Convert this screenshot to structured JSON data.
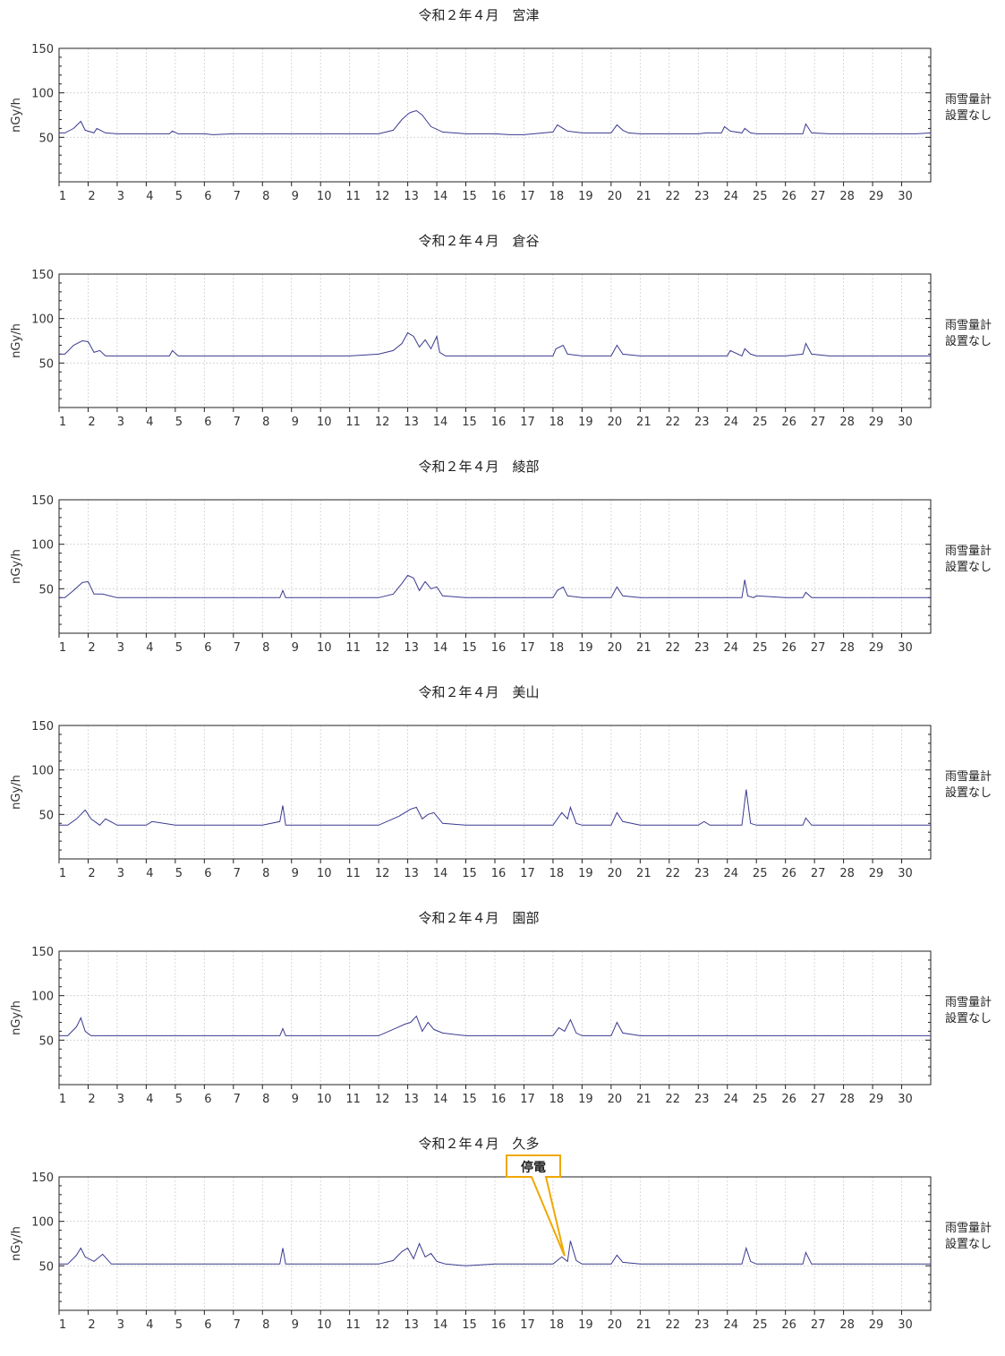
{
  "rain_note": [
    "雨雪量計",
    "設置なし"
  ],
  "callout": {
    "label": "停電",
    "x": 18.4,
    "y": 61
  },
  "chart_data": [
    {
      "type": "line",
      "title": "令和２年４月　宮津",
      "ylabel": "nGy/h",
      "ylim": [
        0,
        150
      ],
      "yticks": [
        50,
        100,
        150
      ],
      "xlim": [
        1,
        31
      ],
      "xticks": [
        "1",
        "2",
        "3",
        "4",
        "5",
        "6",
        "7",
        "8",
        "9",
        "10",
        "11",
        "12",
        "13",
        "14",
        "15",
        "16",
        "17",
        "18",
        "19",
        "20",
        "21",
        "22",
        "23",
        "24",
        "25",
        "26",
        "27",
        "28",
        "29",
        "30"
      ],
      "grid": true,
      "series": [
        {
          "x": [
            1,
            1.2,
            1.5,
            1.75,
            1.9,
            2.2,
            2.3,
            2.6,
            3,
            4,
            4.8,
            4.9,
            5.1,
            6,
            6.3,
            7,
            7.5,
            8,
            9,
            10,
            11,
            12,
            12.5,
            12.8,
            13,
            13.1,
            13.3,
            13.5,
            13.8,
            14.2,
            15,
            16,
            16.5,
            17,
            18,
            18.15,
            18.35,
            18.5,
            19,
            20,
            20.2,
            20.4,
            20.6,
            21,
            22,
            23,
            23.3,
            23.8,
            23.9,
            24.1,
            24.5,
            24.6,
            24.8,
            25,
            26,
            26.6,
            26.7,
            26.9,
            27.5,
            28,
            29,
            30,
            30.5,
            31
          ],
          "y": [
            55,
            55,
            60,
            68,
            58,
            55,
            60,
            55,
            54,
            54,
            54,
            57,
            54,
            54,
            53,
            54,
            54,
            54,
            54,
            54,
            54,
            54,
            58,
            70,
            76,
            78,
            80,
            75,
            62,
            56,
            54,
            54,
            53,
            53,
            56,
            64,
            60,
            57,
            55,
            55,
            64,
            58,
            55,
            54,
            54,
            54,
            55,
            55,
            62,
            57,
            55,
            60,
            55,
            54,
            54,
            54,
            65,
            55,
            54,
            54,
            54,
            54,
            54,
            55
          ]
        }
      ]
    },
    {
      "type": "line",
      "title": "令和２年４月　倉谷",
      "ylabel": "nGy/h",
      "ylim": [
        0,
        150
      ],
      "yticks": [
        50,
        100,
        150
      ],
      "xlim": [
        1,
        31
      ],
      "xticks": [
        "1",
        "2",
        "3",
        "4",
        "5",
        "6",
        "7",
        "8",
        "9",
        "10",
        "11",
        "12",
        "13",
        "14",
        "15",
        "16",
        "17",
        "18",
        "19",
        "20",
        "21",
        "22",
        "23",
        "24",
        "25",
        "26",
        "27",
        "28",
        "29",
        "30"
      ],
      "grid": true,
      "series": [
        {
          "x": [
            1,
            1.2,
            1.5,
            1.8,
            2,
            2.2,
            2.4,
            2.6,
            3,
            4,
            4.8,
            4.9,
            5.1,
            6,
            7,
            8,
            9,
            10,
            11,
            12,
            12.5,
            12.8,
            13,
            13.2,
            13.4,
            13.6,
            13.8,
            14,
            14.1,
            14.3,
            15,
            16,
            17,
            18,
            18.1,
            18.35,
            18.5,
            19,
            20,
            20.2,
            20.4,
            21,
            22,
            23,
            24,
            24.1,
            24.5,
            24.6,
            24.8,
            25,
            26,
            26.6,
            26.7,
            26.9,
            27.5,
            28,
            29,
            30,
            31
          ],
          "y": [
            60,
            60,
            70,
            75,
            74,
            62,
            64,
            58,
            58,
            58,
            58,
            64,
            58,
            58,
            58,
            58,
            58,
            58,
            58,
            60,
            64,
            72,
            84,
            80,
            68,
            76,
            66,
            80,
            62,
            58,
            58,
            58,
            58,
            58,
            66,
            70,
            60,
            58,
            58,
            70,
            60,
            58,
            58,
            58,
            58,
            64,
            58,
            66,
            60,
            58,
            58,
            60,
            72,
            60,
            58,
            58,
            58,
            58,
            58
          ]
        }
      ]
    },
    {
      "type": "line",
      "title": "令和２年４月　綾部",
      "ylabel": "nGy/h",
      "ylim": [
        0,
        150
      ],
      "yticks": [
        50,
        100,
        150
      ],
      "xlim": [
        1,
        31
      ],
      "xticks": [
        "1",
        "2",
        "3",
        "4",
        "5",
        "6",
        "7",
        "8",
        "9",
        "10",
        "11",
        "12",
        "13",
        "14",
        "15",
        "16",
        "17",
        "18",
        "19",
        "20",
        "21",
        "22",
        "23",
        "24",
        "25",
        "26",
        "27",
        "28",
        "29",
        "30"
      ],
      "grid": true,
      "series": [
        {
          "x": [
            1,
            1.2,
            1.5,
            1.8,
            2,
            2.2,
            2.5,
            3,
            4,
            5,
            6,
            7,
            8,
            8.6,
            8.7,
            8.8,
            9,
            10,
            11,
            12,
            12.5,
            12.8,
            13,
            13.2,
            13.4,
            13.6,
            13.8,
            14,
            14.2,
            15,
            16,
            17,
            18,
            18.15,
            18.35,
            18.5,
            19,
            20,
            20.2,
            20.4,
            21,
            22,
            23,
            24,
            24.5,
            24.6,
            24.7,
            24.9,
            25,
            26,
            26.6,
            26.7,
            26.9,
            27,
            28,
            29,
            30,
            31
          ],
          "y": [
            40,
            40,
            48,
            57,
            58,
            44,
            44,
            40,
            40,
            40,
            40,
            40,
            40,
            40,
            48,
            40,
            40,
            40,
            40,
            40,
            44,
            56,
            65,
            62,
            48,
            58,
            50,
            52,
            42,
            40,
            40,
            40,
            40,
            48,
            52,
            42,
            40,
            40,
            52,
            42,
            40,
            40,
            40,
            40,
            40,
            60,
            42,
            40,
            42,
            40,
            40,
            46,
            40,
            40,
            40,
            40,
            40,
            40
          ]
        }
      ]
    },
    {
      "type": "line",
      "title": "令和２年４月　美山",
      "ylabel": "nGy/h",
      "ylim": [
        0,
        150
      ],
      "yticks": [
        50,
        100,
        150
      ],
      "xlim": [
        1,
        31
      ],
      "xticks": [
        "1",
        "2",
        "3",
        "4",
        "5",
        "6",
        "7",
        "8",
        "9",
        "10",
        "11",
        "12",
        "13",
        "14",
        "15",
        "16",
        "17",
        "18",
        "19",
        "20",
        "21",
        "22",
        "23",
        "24",
        "25",
        "26",
        "27",
        "28",
        "29",
        "30"
      ],
      "grid": true,
      "series": [
        {
          "x": [
            1,
            1.3,
            1.6,
            1.9,
            2.1,
            2.4,
            2.6,
            3,
            4,
            4.2,
            5,
            6,
            7,
            8,
            8.6,
            8.7,
            8.8,
            9,
            10,
            11,
            12,
            12.7,
            12.9,
            13.1,
            13.3,
            13.5,
            13.7,
            13.9,
            14.2,
            15,
            16,
            17,
            18,
            18.3,
            18.5,
            18.6,
            18.8,
            19,
            20,
            20.2,
            20.4,
            21,
            22,
            23,
            23.2,
            23.4,
            24,
            24.5,
            24.65,
            24.8,
            25,
            26,
            26.6,
            26.7,
            26.9,
            27,
            28,
            29,
            30,
            31
          ],
          "y": [
            38,
            38,
            45,
            55,
            45,
            38,
            45,
            38,
            38,
            42,
            38,
            38,
            38,
            38,
            42,
            60,
            38,
            38,
            38,
            38,
            38,
            48,
            52,
            56,
            58,
            45,
            50,
            52,
            40,
            38,
            38,
            38,
            38,
            52,
            45,
            58,
            40,
            38,
            38,
            52,
            42,
            38,
            38,
            38,
            42,
            38,
            38,
            38,
            78,
            40,
            38,
            38,
            38,
            46,
            38,
            38,
            38,
            38,
            38,
            38
          ]
        }
      ]
    },
    {
      "type": "line",
      "title": "令和２年４月　園部",
      "ylabel": "nGy/h",
      "ylim": [
        0,
        150
      ],
      "yticks": [
        50,
        100,
        150
      ],
      "xlim": [
        1,
        31
      ],
      "xticks": [
        "1",
        "2",
        "3",
        "4",
        "5",
        "6",
        "7",
        "8",
        "9",
        "10",
        "11",
        "12",
        "13",
        "14",
        "15",
        "16",
        "17",
        "18",
        "19",
        "20",
        "21",
        "22",
        "23",
        "24",
        "25",
        "26",
        "27",
        "28",
        "29",
        "30"
      ],
      "grid": true,
      "series": [
        {
          "x": [
            1,
            1.3,
            1.6,
            1.75,
            1.9,
            2.1,
            2.5,
            3,
            4,
            5,
            6,
            7,
            8,
            8.6,
            8.7,
            8.8,
            9,
            10,
            11,
            12,
            12.7,
            12.9,
            13.1,
            13.3,
            13.5,
            13.7,
            13.9,
            14.2,
            15,
            16,
            17,
            18,
            18.2,
            18.4,
            18.6,
            18.8,
            19,
            20,
            20.2,
            20.4,
            21,
            22,
            23,
            24,
            25,
            26,
            27,
            28,
            29,
            30,
            31
          ],
          "y": [
            55,
            55,
            65,
            75,
            60,
            55,
            55,
            55,
            55,
            55,
            55,
            55,
            55,
            55,
            63,
            55,
            55,
            55,
            55,
            55,
            65,
            68,
            70,
            77,
            60,
            70,
            62,
            58,
            55,
            55,
            55,
            55,
            64,
            60,
            73,
            58,
            55,
            55,
            70,
            58,
            55,
            55,
            55,
            55,
            55,
            55,
            55,
            55,
            55,
            55,
            55
          ]
        }
      ]
    },
    {
      "type": "line",
      "title": "令和２年４月　久多",
      "ylabel": "nGy/h",
      "ylim": [
        0,
        150
      ],
      "yticks": [
        50,
        100,
        150
      ],
      "xlim": [
        1,
        31
      ],
      "xticks": [
        "1",
        "2",
        "3",
        "4",
        "5",
        "6",
        "7",
        "8",
        "9",
        "10",
        "11",
        "12",
        "13",
        "14",
        "15",
        "16",
        "17",
        "18",
        "19",
        "20",
        "21",
        "22",
        "23",
        "24",
        "25",
        "26",
        "27",
        "28",
        "29",
        "30"
      ],
      "grid": true,
      "series": [
        {
          "x": [
            1,
            1.3,
            1.6,
            1.75,
            1.9,
            2.2,
            2.5,
            2.8,
            3,
            4,
            5,
            6,
            6.5,
            7,
            8,
            8.6,
            8.7,
            8.8,
            9,
            10,
            11,
            12,
            12.5,
            12.8,
            13,
            13.2,
            13.4,
            13.6,
            13.8,
            14,
            14.3,
            15,
            16,
            17,
            18,
            18.3,
            18.5,
            18.6,
            18.8,
            19,
            20,
            20.2,
            20.4,
            21,
            22,
            23,
            24,
            24.5,
            24.65,
            24.8,
            25,
            26,
            26.6,
            26.7,
            26.9,
            27,
            28,
            29,
            30,
            31
          ],
          "y": [
            52,
            52,
            62,
            70,
            60,
            55,
            63,
            52,
            52,
            52,
            52,
            52,
            52,
            52,
            52,
            52,
            70,
            52,
            52,
            52,
            52,
            52,
            56,
            66,
            70,
            58,
            75,
            60,
            64,
            55,
            52,
            50,
            52,
            52,
            52,
            60,
            55,
            78,
            56,
            52,
            52,
            62,
            54,
            52,
            52,
            52,
            52,
            52,
            70,
            55,
            52,
            52,
            52,
            65,
            52,
            52,
            52,
            52,
            52,
            52
          ]
        }
      ]
    }
  ]
}
